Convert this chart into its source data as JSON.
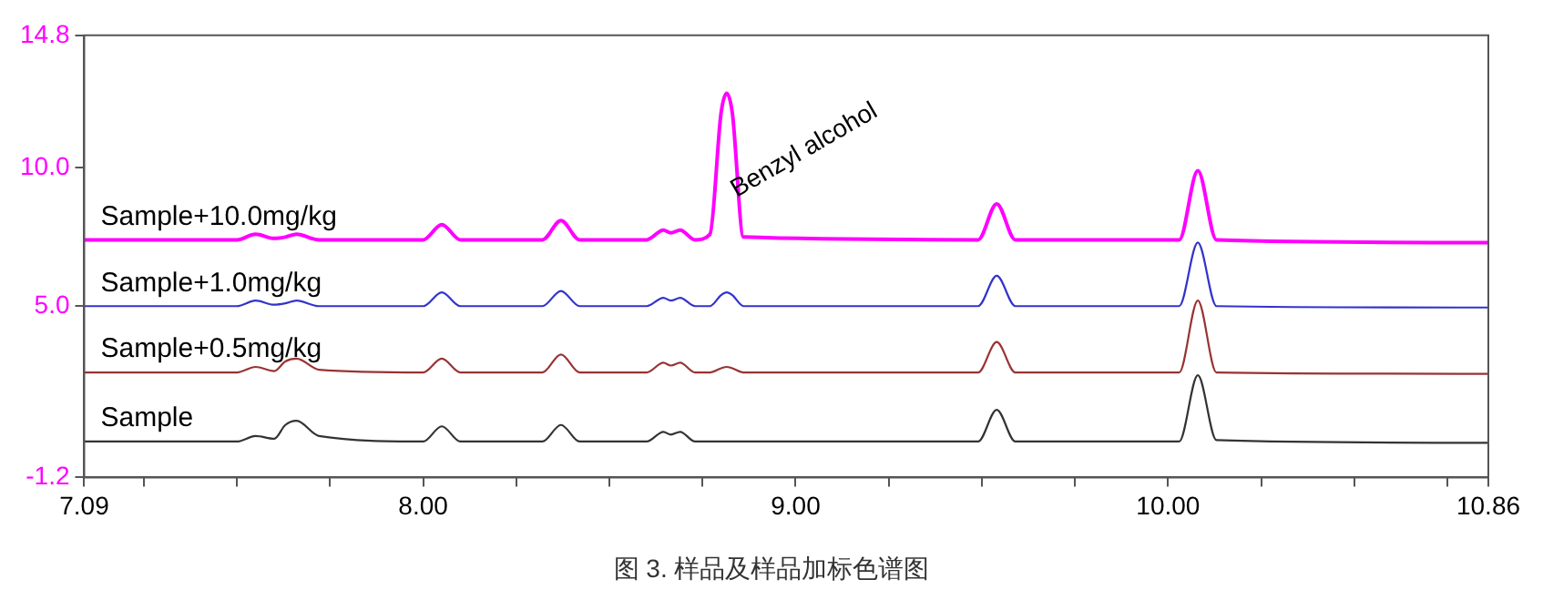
{
  "chart_data": {
    "type": "line",
    "x": [
      7.09,
      7.5,
      7.55,
      7.6,
      7.63,
      7.66,
      7.72,
      8.0,
      8.05,
      8.1,
      8.32,
      8.37,
      8.42,
      8.6,
      8.645,
      8.665,
      8.69,
      8.73,
      8.77,
      8.8,
      8.815,
      8.83,
      8.86,
      9.49,
      9.54,
      9.59,
      10.03,
      10.08,
      10.13,
      10.86
    ],
    "series": [
      {
        "name": "Sample+10.0mg/kg",
        "color": "#ff00ff",
        "values": [
          7.4,
          7.4,
          7.6,
          7.45,
          7.5,
          7.6,
          7.4,
          7.4,
          7.95,
          7.4,
          7.4,
          8.1,
          7.4,
          7.4,
          7.75,
          7.65,
          7.75,
          7.4,
          7.6,
          12.0,
          12.7,
          12.0,
          7.5,
          7.4,
          8.7,
          7.4,
          7.4,
          9.9,
          7.4,
          7.3
        ]
      },
      {
        "name": "Sample+1.0mg/kg",
        "color": "#3333cc",
        "values": [
          5.0,
          5.0,
          5.2,
          5.05,
          5.1,
          5.2,
          5.0,
          5.0,
          5.5,
          5.0,
          5.0,
          5.55,
          5.0,
          5.0,
          5.3,
          5.2,
          5.3,
          5.0,
          5.0,
          5.4,
          5.5,
          5.4,
          5.0,
          5.0,
          6.1,
          5.0,
          5.0,
          7.3,
          5.0,
          4.95
        ]
      },
      {
        "name": "Sample+0.5mg/kg",
        "color": "#993333",
        "values": [
          2.6,
          2.6,
          2.8,
          2.65,
          3.0,
          3.1,
          2.7,
          2.6,
          3.1,
          2.6,
          2.6,
          3.25,
          2.6,
          2.6,
          2.95,
          2.85,
          2.95,
          2.6,
          2.6,
          2.75,
          2.8,
          2.75,
          2.6,
          2.6,
          3.7,
          2.6,
          2.6,
          5.2,
          2.6,
          2.55
        ]
      },
      {
        "name": "Sample",
        "color": "#333333",
        "values": [
          0.1,
          0.1,
          0.3,
          0.2,
          0.7,
          0.85,
          0.3,
          0.1,
          0.65,
          0.1,
          0.1,
          0.7,
          0.1,
          0.1,
          0.45,
          0.35,
          0.45,
          0.1,
          0.1,
          0.1,
          0.1,
          0.1,
          0.1,
          0.1,
          1.25,
          0.1,
          0.1,
          2.5,
          0.15,
          0.05
        ]
      }
    ],
    "xlim": [
      7.09,
      10.86
    ],
    "xticks": [
      {
        "value": 7.09,
        "label": "7.09"
      },
      {
        "value": 7.25,
        "label": null
      },
      {
        "value": 7.5,
        "label": null
      },
      {
        "value": 7.75,
        "label": null
      },
      {
        "value": 8,
        "label": "8.00"
      },
      {
        "value": 8.25,
        "label": null
      },
      {
        "value": 8.5,
        "label": null
      },
      {
        "value": 8.75,
        "label": null
      },
      {
        "value": 9,
        "label": "9.00"
      },
      {
        "value": 9.25,
        "label": null
      },
      {
        "value": 9.5,
        "label": null
      },
      {
        "value": 9.75,
        "label": null
      },
      {
        "value": 10,
        "label": "10.00"
      },
      {
        "value": 10.25,
        "label": null
      },
      {
        "value": 10.5,
        "label": null
      },
      {
        "value": 10.75,
        "label": null
      },
      {
        "value": 10.86,
        "label": "10.86"
      }
    ],
    "ylim": [
      -1.2,
      14.8
    ],
    "yticks": [
      -1.2,
      {
        "value": 5,
        "label": "5.0"
      },
      {
        "value": 10,
        "label": "10.0"
      },
      14.8
    ],
    "grid": false,
    "legend": false,
    "marker": "none",
    "line_style": "solid",
    "annotations": [
      {
        "text": "Benzyl alcohol",
        "x": 8.81,
        "y": 12.7
      },
      "图 3. 样品及样品加标色谱图"
    ]
  }
}
